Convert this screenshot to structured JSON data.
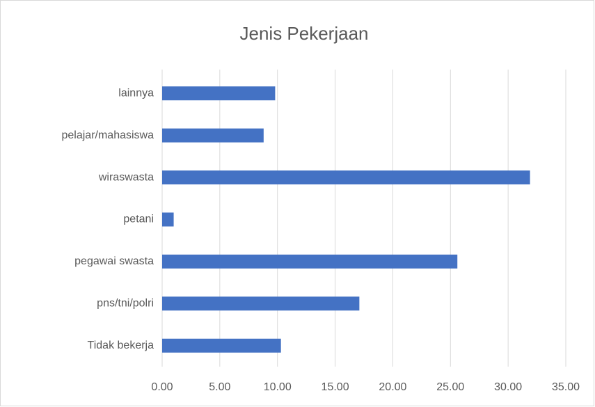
{
  "chart_data": {
    "type": "bar",
    "orientation": "horizontal",
    "title": "Jenis Pekerjaan",
    "categories": [
      "lainnya",
      "pelajar/mahasiswa",
      "wiraswasta",
      "petani",
      "pegawai swasta",
      "pns/tni/polri",
      "Tidak bekerja"
    ],
    "values": [
      9.8,
      8.8,
      31.9,
      1.0,
      25.6,
      17.1,
      10.3
    ],
    "color": "#4472c4",
    "xlim": [
      0,
      35
    ],
    "xticks": [
      {
        "value": 0,
        "label": "0.00"
      },
      {
        "value": 5,
        "label": "5.00"
      },
      {
        "value": 10,
        "label": "10.00"
      },
      {
        "value": 15,
        "label": "15.00"
      },
      {
        "value": 20,
        "label": "20.00"
      },
      {
        "value": 25,
        "label": "25.00"
      },
      {
        "value": 30,
        "label": "30.00"
      },
      {
        "value": 35,
        "label": "35.00"
      }
    ],
    "grid": true
  }
}
